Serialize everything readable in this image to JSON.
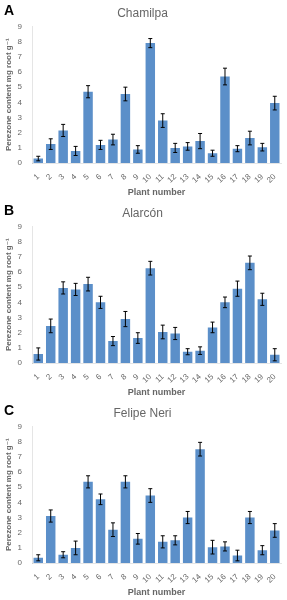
{
  "chart_data": [
    {
      "type": "bar",
      "title": "Chamilpa",
      "annotations": [
        {
          "text": "A"
        }
      ],
      "xlabel": "Plant number",
      "ylabel": "Perezone content mg root g⁻¹",
      "categories": [
        "1",
        "2",
        "3",
        "4",
        "5",
        "6",
        "7",
        "8",
        "9",
        "10",
        "11",
        "12",
        "13",
        "14",
        "15",
        "16",
        "17",
        "18",
        "19",
        "20"
      ],
      "values": [
        0.3,
        1.25,
        2.15,
        0.8,
        4.7,
        1.2,
        1.55,
        4.55,
        0.9,
        7.9,
        2.8,
        1.0,
        1.1,
        1.45,
        0.65,
        5.7,
        0.95,
        1.65,
        1.05,
        3.95
      ],
      "errors": [
        0.15,
        0.35,
        0.4,
        0.3,
        0.4,
        0.3,
        0.35,
        0.45,
        0.25,
        0.3,
        0.45,
        0.3,
        0.25,
        0.5,
        0.2,
        0.55,
        0.2,
        0.45,
        0.25,
        0.45
      ],
      "color": "#5b8fc9",
      "ylim": [
        0,
        9
      ],
      "yticks": [
        0,
        1,
        2,
        3,
        4,
        5,
        6,
        7,
        8,
        9
      ],
      "grid": false
    },
    {
      "type": "bar",
      "title": "Alarcón",
      "annotations": [
        {
          "text": "B"
        }
      ],
      "xlabel": "Plant number",
      "ylabel": "Perezone content mg root g⁻¹",
      "categories": [
        "1",
        "2",
        "3",
        "4",
        "5",
        "6",
        "7",
        "8",
        "9",
        "10",
        "11",
        "12",
        "13",
        "14",
        "15",
        "16",
        "17",
        "18",
        "19",
        "20"
      ],
      "values": [
        0.6,
        2.45,
        4.95,
        4.85,
        5.2,
        4.0,
        1.45,
        2.9,
        1.65,
        6.25,
        2.05,
        1.95,
        0.75,
        0.82,
        2.35,
        4.0,
        4.9,
        6.6,
        4.2,
        0.55
      ],
      "errors": [
        0.4,
        0.45,
        0.4,
        0.4,
        0.45,
        0.4,
        0.3,
        0.5,
        0.35,
        0.45,
        0.45,
        0.4,
        0.2,
        0.25,
        0.35,
        0.35,
        0.5,
        0.45,
        0.4,
        0.4
      ],
      "color": "#5b8fc9",
      "ylim": [
        0,
        9
      ],
      "yticks": [
        0,
        1,
        2,
        3,
        4,
        5,
        6,
        7,
        8,
        9
      ],
      "grid": false
    },
    {
      "type": "bar",
      "title": "Felipe Neri",
      "annotations": [
        {
          "text": "C"
        }
      ],
      "xlabel": "Plant number",
      "ylabel": "Perezone content mg root g⁻¹",
      "categories": [
        "1",
        "2",
        "3",
        "4",
        "5",
        "6",
        "7",
        "8",
        "9",
        "10",
        "11",
        "12",
        "13",
        "14",
        "15",
        "16",
        "17",
        "18",
        "19",
        "20"
      ],
      "values": [
        0.35,
        3.1,
        0.55,
        1.0,
        5.35,
        4.2,
        2.2,
        5.35,
        1.6,
        4.45,
        1.4,
        1.5,
        3.0,
        7.5,
        1.05,
        1.1,
        0.5,
        3.0,
        0.85,
        2.15
      ],
      "errors": [
        0.2,
        0.4,
        0.2,
        0.45,
        0.4,
        0.35,
        0.45,
        0.4,
        0.35,
        0.45,
        0.4,
        0.3,
        0.4,
        0.45,
        0.45,
        0.3,
        0.35,
        0.4,
        0.3,
        0.45
      ],
      "color": "#5b8fc9",
      "ylim": [
        0,
        9
      ],
      "yticks": [
        0,
        1,
        2,
        3,
        4,
        5,
        6,
        7,
        8,
        9
      ],
      "grid": false
    }
  ]
}
